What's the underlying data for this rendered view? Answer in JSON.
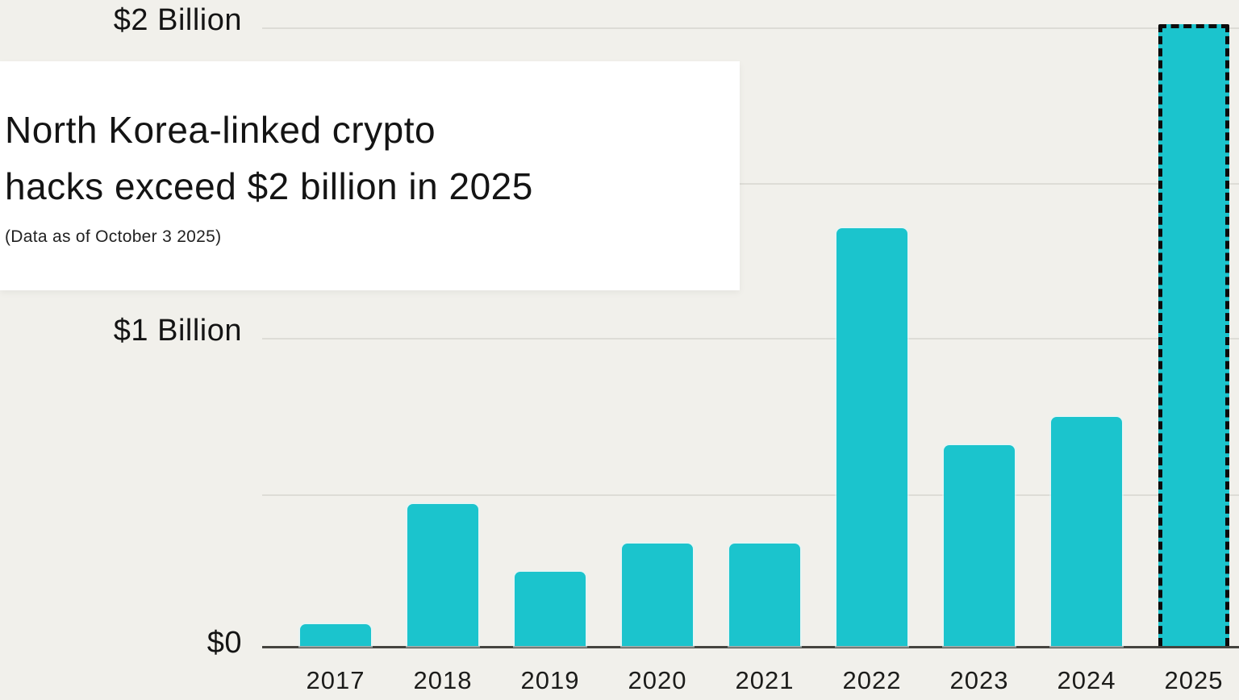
{
  "title_card": {
    "title_line1": "North Korea-linked crypto",
    "title_line2": "hacks exceed $2 billion in 2025",
    "subtitle": "(Data as of October 3 2025)"
  },
  "y_axis": {
    "top": "$2 Billion",
    "mid": "$1 Billion",
    "zero": "$0"
  },
  "chart_data": {
    "type": "bar",
    "title": "North Korea-linked crypto hacks exceed $2 billion in 2025",
    "subtitle": "(Data as of October 3 2025)",
    "categories": [
      "2017",
      "2018",
      "2019",
      "2020",
      "2021",
      "2022",
      "2023",
      "2024",
      "2025"
    ],
    "values": [
      0.07,
      0.46,
      0.24,
      0.33,
      0.33,
      1.35,
      0.65,
      0.74,
      2.01
    ],
    "unit": "billion USD",
    "ylabel": "",
    "ytick_labels": [
      "$0",
      "$1 Billion",
      "$2 Billion"
    ],
    "ylim": [
      0,
      2.1
    ],
    "gridlines_billion": [
      0.5,
      1.0,
      1.5,
      2.0
    ],
    "grid": "on",
    "legend": "none",
    "highlighted_category": "2025",
    "highlight_style": "black dashed border",
    "bar_color": "#1bc4cd",
    "background_color": "#f1f0eb",
    "gridline_color": "#dddcd6"
  }
}
